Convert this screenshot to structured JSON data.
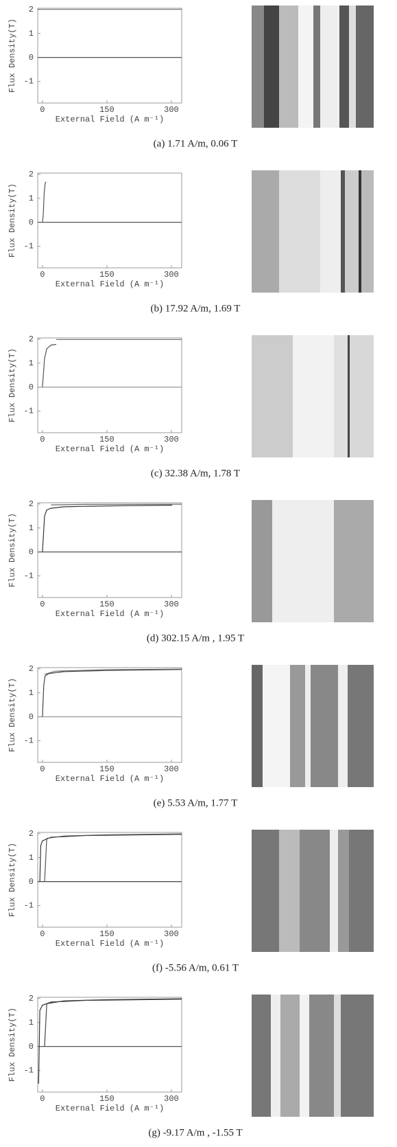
{
  "chart_data": [
    {
      "type": "line",
      "ylabel": "Flux Density(T)",
      "xlabel": "External   Field (A m⁻¹)",
      "caption": "(a) 1.71 A/m, 0.06 T",
      "xlim": [
        -11,
        324
      ],
      "ylim": [
        -1.9,
        2.05
      ],
      "xticks": [
        0,
        150,
        300
      ],
      "yticks": [
        -1,
        0,
        1,
        2
      ],
      "series": [
        {
          "color": "#555555",
          "x": [
            -11,
            324
          ],
          "values": [
            0,
            0
          ]
        },
        {
          "color": "#777777",
          "x": [
            -11,
            324
          ],
          "values": [
            2,
            2
          ]
        }
      ]
    },
    {
      "type": "line",
      "ylabel": "Flux Density(T)",
      "xlabel": "External   Field (A m⁻¹)",
      "caption": "(b) 17.92 A/m, 1.69 T",
      "xlim": [
        -11,
        324
      ],
      "ylim": [
        -1.9,
        2.05
      ],
      "xticks": [
        0,
        150,
        300
      ],
      "yticks": [
        -1,
        0,
        1,
        2
      ],
      "series": [
        {
          "color": "#555555",
          "x": [
            -11,
            0,
            324
          ],
          "values": [
            0,
            0,
            0
          ]
        },
        {
          "color": "#555555",
          "x": [
            0,
            2,
            4,
            6,
            8
          ],
          "values": [
            0,
            0.3,
            1.2,
            1.6,
            1.69
          ]
        }
      ]
    },
    {
      "type": "line",
      "ylabel": "Flux Density(T)",
      "xlabel": "External   Field (A m⁻¹)",
      "caption": "(c) 32.38 A/m, 1.78 T",
      "xlim": [
        -11,
        324
      ],
      "ylim": [
        -1.9,
        2.05
      ],
      "xticks": [
        0,
        150,
        300
      ],
      "yticks": [
        -1,
        0,
        1,
        2
      ],
      "series": [
        {
          "color": "#999999",
          "x": [
            -11,
            324
          ],
          "values": [
            0,
            0
          ]
        },
        {
          "color": "#555555",
          "x": [
            0,
            5,
            10,
            20,
            32
          ],
          "values": [
            0,
            1.2,
            1.6,
            1.75,
            1.78
          ]
        },
        {
          "color": "#777777",
          "x": [
            32,
            324
          ],
          "values": [
            1.98,
            1.98
          ]
        }
      ]
    },
    {
      "type": "line",
      "ylabel": "Flux Density(T)",
      "xlabel": "External   Field (A m⁻¹)",
      "caption": "(d) 302.15 A/m , 1.95 T",
      "xlim": [
        -11,
        324
      ],
      "ylim": [
        -1.9,
        2.05
      ],
      "xticks": [
        0,
        150,
        300
      ],
      "yticks": [
        -1,
        0,
        1,
        2
      ],
      "series": [
        {
          "color": "#555555",
          "x": [
            -11,
            324
          ],
          "values": [
            0,
            0
          ]
        },
        {
          "color": "#333333",
          "x": [
            0,
            5,
            10,
            20,
            50,
            100,
            200,
            302
          ],
          "values": [
            0,
            1.5,
            1.75,
            1.82,
            1.88,
            1.9,
            1.93,
            1.95
          ]
        },
        {
          "color": "#666666",
          "x": [
            20,
            100,
            324
          ],
          "values": [
            1.96,
            1.98,
            1.99
          ]
        }
      ]
    },
    {
      "type": "line",
      "ylabel": "Flux Density(T)",
      "xlabel": "External   Field (A m⁻¹)",
      "caption": "(e) 5.53 A/m, 1.77 T",
      "xlim": [
        -11,
        324
      ],
      "ylim": [
        -1.9,
        2.05
      ],
      "xticks": [
        0,
        150,
        300
      ],
      "yticks": [
        -1,
        0,
        1,
        2
      ],
      "series": [
        {
          "color": "#999999",
          "x": [
            -11,
            324
          ],
          "values": [
            0,
            0
          ]
        },
        {
          "color": "#444444",
          "x": [
            0,
            3,
            6,
            15,
            50,
            150,
            324
          ],
          "values": [
            0,
            1.3,
            1.7,
            1.8,
            1.88,
            1.93,
            1.97
          ]
        },
        {
          "color": "#666666",
          "x": [
            5,
            30,
            150,
            324
          ],
          "values": [
            1.77,
            1.9,
            1.96,
            1.99
          ]
        }
      ]
    },
    {
      "type": "line",
      "ylabel": "Flux Density(T)",
      "xlabel": "External   Field (A m⁻¹)",
      "caption": "(f) -5.56 A/m, 0.61 T",
      "xlim": [
        -11,
        324
      ],
      "ylim": [
        -1.9,
        2.05
      ],
      "xticks": [
        0,
        150,
        300
      ],
      "yticks": [
        -1,
        0,
        1,
        2
      ],
      "series": [
        {
          "color": "#444444",
          "x": [
            -11,
            324
          ],
          "values": [
            0,
            0
          ]
        },
        {
          "color": "#333333",
          "x": [
            -6,
            -4,
            0,
            20,
            100,
            324
          ],
          "values": [
            0,
            1.5,
            1.7,
            1.85,
            1.92,
            1.97
          ]
        },
        {
          "color": "#555555",
          "x": [
            5,
            10,
            50,
            150,
            324
          ],
          "values": [
            0,
            1.8,
            1.9,
            1.95,
            1.99
          ]
        }
      ]
    },
    {
      "type": "line",
      "ylabel": "Flux Density(T)",
      "xlabel": "External   Field (A m⁻¹)",
      "caption": "(g) -9.17 A/m , -1.55 T",
      "xlim": [
        -11,
        324
      ],
      "ylim": [
        -1.9,
        2.05
      ],
      "xticks": [
        0,
        150,
        300
      ],
      "yticks": [
        -1,
        0,
        1,
        2
      ],
      "series": [
        {
          "color": "#555555",
          "x": [
            -11,
            324
          ],
          "values": [
            0,
            0
          ]
        },
        {
          "color": "#333333",
          "x": [
            -9,
            -6,
            0,
            20,
            100,
            324
          ],
          "values": [
            -1.55,
            1.5,
            1.72,
            1.85,
            1.92,
            1.97
          ]
        },
        {
          "color": "#444444",
          "x": [
            5,
            10,
            50,
            150,
            324
          ],
          "values": [
            0,
            1.78,
            1.9,
            1.95,
            1.99
          ]
        }
      ]
    }
  ]
}
